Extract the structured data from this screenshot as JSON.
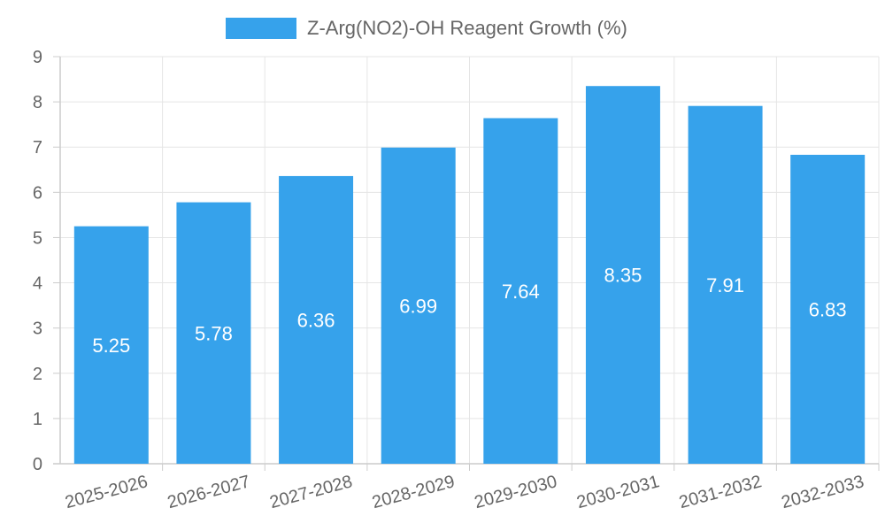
{
  "chart_data": {
    "type": "bar",
    "categories": [
      "2025-2026",
      "2026-2027",
      "2027-2028",
      "2028-2029",
      "2029-2030",
      "2030-2031",
      "2031-2032",
      "2032-2033"
    ],
    "series": [
      {
        "name": "Z-Arg(NO2)-OH Reagent Growth (%)",
        "values": [
          5.25,
          5.78,
          6.36,
          6.99,
          7.64,
          8.35,
          7.91,
          6.83
        ],
        "color": "#36a2eb"
      }
    ],
    "ylim": [
      0,
      9
    ],
    "yticks": [
      "0",
      "1",
      "2",
      "3",
      "4",
      "5",
      "6",
      "7",
      "8",
      "9"
    ],
    "xlabel": "",
    "ylabel": "",
    "grid": true,
    "legend": "top-center",
    "data_labels": [
      "5.25",
      "5.78",
      "6.36",
      "6.99",
      "7.64",
      "8.35",
      "7.91",
      "6.83"
    ]
  }
}
